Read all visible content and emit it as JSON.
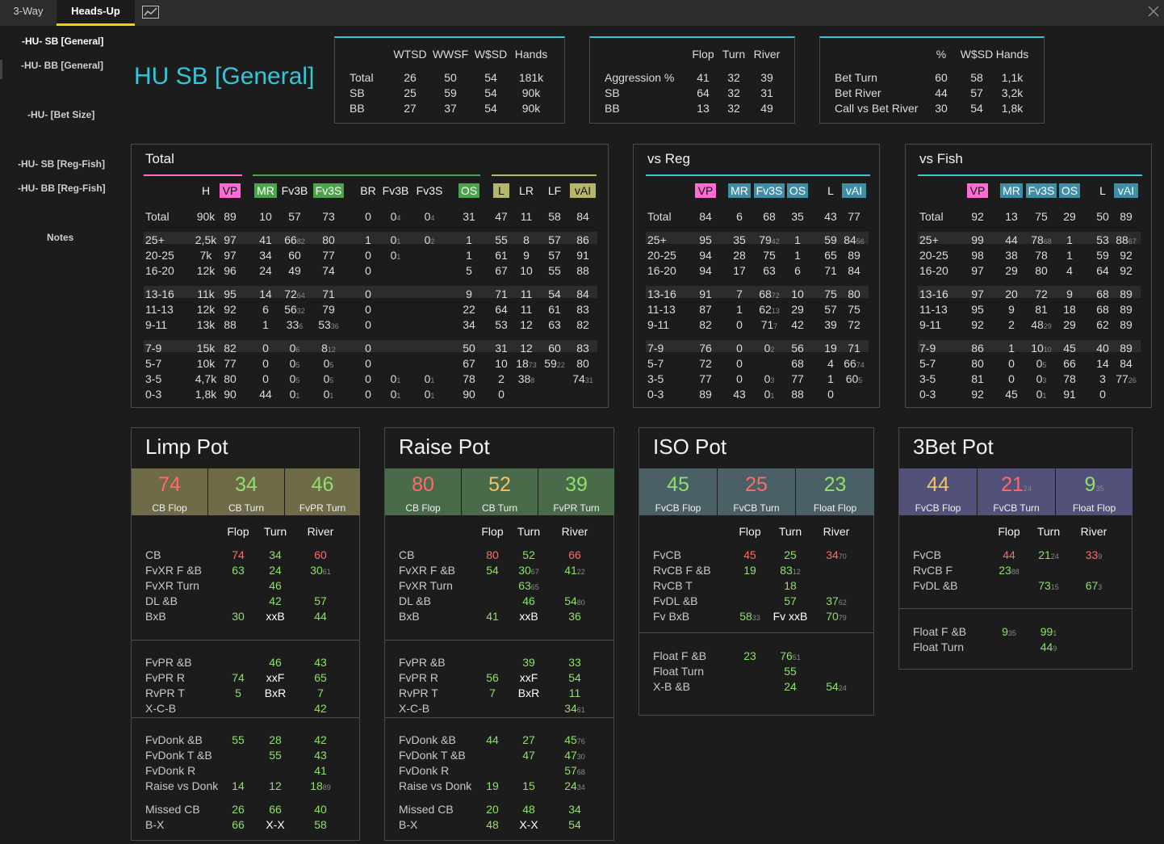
{
  "tabs": [
    "3-Way",
    "Heads-Up"
  ],
  "nav": [
    "-HU- SB [General]",
    "-HU- BB [General]",
    "-HU- [Bet Size]",
    "-HU- SB [Reg-Fish]",
    "-HU- BB [Reg-Fish]",
    "Notes"
  ],
  "title": "HU SB [General]",
  "s1": {
    "cols": [
      "WTSD",
      "WWSF",
      "W$SD",
      "Hands"
    ],
    "rows": [
      [
        "Total",
        "26",
        "50",
        "54",
        "181k"
      ],
      [
        "SB",
        "25",
        "59",
        "54",
        "90k"
      ],
      [
        "BB",
        "27",
        "37",
        "54",
        "90k"
      ]
    ]
  },
  "s2": {
    "cols": [
      "Flop",
      "Turn",
      "River"
    ],
    "rows": [
      [
        "Aggression %",
        "41",
        "32",
        "39"
      ],
      [
        "SB",
        "64",
        "32",
        "31"
      ],
      [
        "BB",
        "13",
        "32",
        "49"
      ]
    ]
  },
  "s3": {
    "cols": [
      "%",
      "W$SD",
      "Hands"
    ],
    "rows": [
      [
        "Bet Turn",
        "60",
        "58",
        "1,1k"
      ],
      [
        "Bet River",
        "44",
        "57",
        "3,2k"
      ],
      [
        "Call vs Bet River",
        "30",
        "54",
        "1,8k"
      ]
    ]
  },
  "total": {
    "title": "Total",
    "heads": [
      "H",
      "VP",
      "MR",
      "Fv3B",
      "Fv3S",
      "BR",
      "Fv3B",
      "Fv3S",
      "OS",
      "L",
      "LR",
      "LF",
      "vAI"
    ],
    "rows": [
      [
        "Total",
        "90k",
        "89",
        "10",
        "57",
        "73",
        "0",
        "0|4",
        "0|4",
        "31",
        "47",
        "11",
        "58",
        "84"
      ],
      [
        "25+",
        "2,5k",
        "97",
        "41",
        "66|82",
        "80",
        "1",
        "0|1",
        "0|2",
        "1",
        "55",
        "8",
        "57",
        "86"
      ],
      [
        "20-25",
        "7k",
        "97",
        "34",
        "60",
        "77",
        "0",
        "0|1",
        "",
        "1",
        "61",
        "9",
        "57",
        "91"
      ],
      [
        "16-20",
        "12k",
        "96",
        "24",
        "49",
        "74",
        "0",
        "",
        "",
        "5",
        "67",
        "10",
        "55",
        "88"
      ],
      [
        "13-16",
        "11k",
        "95",
        "14",
        "72|64",
        "71",
        "0",
        "",
        "",
        "9",
        "71",
        "11",
        "54",
        "84"
      ],
      [
        "11-13",
        "12k",
        "92",
        "6",
        "56|32",
        "79",
        "0",
        "",
        "",
        "22",
        "64",
        "11",
        "61",
        "83"
      ],
      [
        "9-11",
        "13k",
        "88",
        "1",
        "33|6",
        "53|36",
        "0",
        "",
        "",
        "34",
        "53",
        "12",
        "63",
        "82"
      ],
      [
        "7-9",
        "15k",
        "82",
        "0",
        "0|6",
        "8|12",
        "0",
        "",
        "",
        "50",
        "31",
        "12",
        "60",
        "83"
      ],
      [
        "5-7",
        "10k",
        "77",
        "0",
        "0|5",
        "0|5",
        "0",
        "",
        "",
        "67",
        "10",
        "18|73",
        "59|22",
        "80"
      ],
      [
        "3-5",
        "4,7k",
        "80",
        "0",
        "0|5",
        "0|5",
        "0",
        "0|1",
        "0|1",
        "78",
        "2",
        "38|8",
        "",
        "74|31"
      ],
      [
        "0-3",
        "1,8k",
        "90",
        "44",
        "0|1",
        "0|1",
        "0",
        "0|1",
        "0|1",
        "90",
        "0",
        "",
        "",
        ""
      ]
    ]
  },
  "vsreg": {
    "title": "vs Reg",
    "heads": [
      "VP",
      "MR",
      "Fv3S",
      "OS",
      "L",
      "vAI"
    ],
    "rows": [
      [
        "Total",
        "84",
        "6",
        "68",
        "35",
        "43",
        "77"
      ],
      [
        "25+",
        "95",
        "35",
        "79|42",
        "1",
        "59",
        "84|56"
      ],
      [
        "20-25",
        "94",
        "28",
        "75",
        "1",
        "65",
        "89"
      ],
      [
        "16-20",
        "94",
        "17",
        "63",
        "6",
        "71",
        "84"
      ],
      [
        "13-16",
        "91",
        "7",
        "68|72",
        "10",
        "75",
        "80"
      ],
      [
        "11-13",
        "87",
        "1",
        "62|13",
        "29",
        "57",
        "75"
      ],
      [
        "9-11",
        "82",
        "0",
        "71|7",
        "42",
        "39",
        "72"
      ],
      [
        "7-9",
        "76",
        "0",
        "0|2",
        "56",
        "19",
        "71"
      ],
      [
        "5-7",
        "72",
        "0",
        "",
        "68",
        "4",
        "66|74"
      ],
      [
        "3-5",
        "77",
        "0",
        "0|3",
        "77",
        "1",
        "60|5"
      ],
      [
        "0-3",
        "89",
        "43",
        "0|1",
        "88",
        "0",
        ""
      ]
    ]
  },
  "vsfish": {
    "title": "vs Fish",
    "heads": [
      "VP",
      "MR",
      "Fv3S",
      "OS",
      "L",
      "vAI"
    ],
    "rows": [
      [
        "Total",
        "92",
        "13",
        "75",
        "29",
        "50",
        "89"
      ],
      [
        "25+",
        "99",
        "44",
        "78|68",
        "1",
        "53",
        "88|67"
      ],
      [
        "20-25",
        "98",
        "38",
        "78",
        "1",
        "59",
        "92"
      ],
      [
        "16-20",
        "97",
        "29",
        "80",
        "4",
        "64",
        "92"
      ],
      [
        "13-16",
        "97",
        "20",
        "72",
        "9",
        "68",
        "89"
      ],
      [
        "11-13",
        "95",
        "9",
        "81",
        "18",
        "68",
        "89"
      ],
      [
        "9-11",
        "92",
        "2",
        "48|29",
        "29",
        "62",
        "89"
      ],
      [
        "7-9",
        "86",
        "1",
        "10|10",
        "45",
        "40",
        "89"
      ],
      [
        "5-7",
        "80",
        "0",
        "0|5",
        "66",
        "14",
        "84"
      ],
      [
        "3-5",
        "81",
        "0",
        "0|3",
        "78",
        "3",
        "77|26"
      ],
      [
        "0-3",
        "92",
        "45",
        "0|1",
        "91",
        "0",
        ""
      ]
    ]
  },
  "pots": [
    {
      "title": "Limp Pot",
      "tiles": [
        [
          "74",
          "CB Flop"
        ],
        [
          "34",
          "CB Turn"
        ],
        [
          "46",
          "FvPR Turn"
        ]
      ],
      "cols": [
        "Flop",
        "Turn",
        "River"
      ],
      "groups": [
        [
          [
            "CB",
            "74",
            "34",
            "60"
          ],
          [
            "FvXR F &B",
            "63",
            "24",
            "30|61"
          ],
          [
            "FvXR Turn",
            "",
            "46",
            ""
          ],
          [
            "DL &B",
            "",
            "42",
            "57"
          ],
          [
            "BxB",
            "30",
            "xxB",
            "44"
          ]
        ],
        [
          [
            "FvPR &B",
            "",
            "46",
            "43"
          ],
          [
            "FvPR R",
            "74",
            "xxF",
            "65"
          ],
          [
            "RvPR T",
            "5",
            "BxR",
            "7"
          ],
          [
            "X-C-B",
            "",
            "",
            "42"
          ]
        ],
        [
          [
            "FvDonk &B",
            "55",
            "28",
            "42"
          ],
          [
            "FvDonk T &B",
            "",
            "55",
            "43"
          ],
          [
            "FvDonk R",
            "",
            "",
            "41"
          ],
          [
            "Raise vs Donk",
            "14",
            "12",
            "18|89"
          ]
        ],
        [
          [
            "Missed CB",
            "26",
            "66",
            "40"
          ],
          [
            "B-X",
            "66",
            "X-X",
            "58"
          ]
        ]
      ]
    },
    {
      "title": "Raise Pot",
      "tiles": [
        [
          "80",
          "CB Flop"
        ],
        [
          "52",
          "CB Turn"
        ],
        [
          "39",
          "FvPR Turn"
        ]
      ],
      "cols": [
        "Flop",
        "Turn",
        "River"
      ],
      "groups": [
        [
          [
            "CB",
            "80",
            "52",
            "66"
          ],
          [
            "FvXR F &B",
            "54",
            "30|67",
            "41|22"
          ],
          [
            "FvXR Turn",
            "",
            "63|65",
            ""
          ],
          [
            "DL &B",
            "",
            "46",
            "54|80"
          ],
          [
            "BxB",
            "41",
            "xxB",
            "36"
          ]
        ],
        [
          [
            "FvPR &B",
            "",
            "39",
            "33"
          ],
          [
            "FvPR R",
            "56",
            "xxF",
            "54"
          ],
          [
            "RvPR T",
            "7",
            "BxR",
            "11"
          ],
          [
            "X-C-B",
            "",
            "",
            "34|61"
          ]
        ],
        [
          [
            "FvDonk &B",
            "44",
            "27",
            "45|76"
          ],
          [
            "FvDonk T &B",
            "",
            "47",
            "47|30"
          ],
          [
            "FvDonk R",
            "",
            "",
            "57|68"
          ],
          [
            "Raise vs Donk",
            "19",
            "15",
            "24|34"
          ]
        ],
        [
          [
            "Missed CB",
            "20",
            "48",
            "34"
          ],
          [
            "B-X",
            "48",
            "X-X",
            "54"
          ]
        ]
      ]
    },
    {
      "title": "ISO Pot",
      "tiles": [
        [
          "45",
          "FvCB Flop"
        ],
        [
          "25",
          "FvCB Turn"
        ],
        [
          "23",
          "Float Flop"
        ]
      ],
      "cols": [
        "Flop",
        "Turn",
        "River"
      ],
      "groups": [
        [
          [
            "FvCB",
            "45",
            "25",
            "34|70"
          ],
          [
            "RvCB F &B",
            "19",
            "83|12",
            ""
          ],
          [
            "RvCB T",
            "",
            "18",
            ""
          ],
          [
            "FvDL &B",
            "",
            "57",
            "37|62"
          ],
          [
            "Fv BxB",
            "58|33",
            "Fv xxB",
            "70|79"
          ]
        ],
        [
          [
            "Float F &B",
            "23",
            "76|51",
            ""
          ],
          [
            "Float Turn",
            "",
            "55",
            ""
          ],
          [
            "X-B &B",
            "",
            "24",
            "54|24"
          ]
        ]
      ]
    },
    {
      "title": "3Bet Pot",
      "tiles": [
        [
          "44",
          "FvCB Flop"
        ],
        [
          "21|24",
          "FvCB Turn"
        ],
        [
          "9|35",
          "Float Flop"
        ]
      ],
      "cols": [
        "Flop",
        "Turn",
        "River"
      ],
      "groups": [
        [
          [
            "FvCB",
            "44",
            "21|24",
            "33|9"
          ],
          [
            "RvCB F",
            "23|88",
            "",
            ""
          ],
          [
            "FvDL &B",
            "",
            "73|15",
            "67|3"
          ]
        ],
        [
          [
            "Float F &B",
            "9|35",
            "99|1",
            ""
          ],
          [
            "Float Turn",
            "",
            "44|9",
            ""
          ]
        ]
      ]
    }
  ],
  "colors": {
    "accent": "#36c5d6",
    "tab_active": "#f0d000"
  }
}
